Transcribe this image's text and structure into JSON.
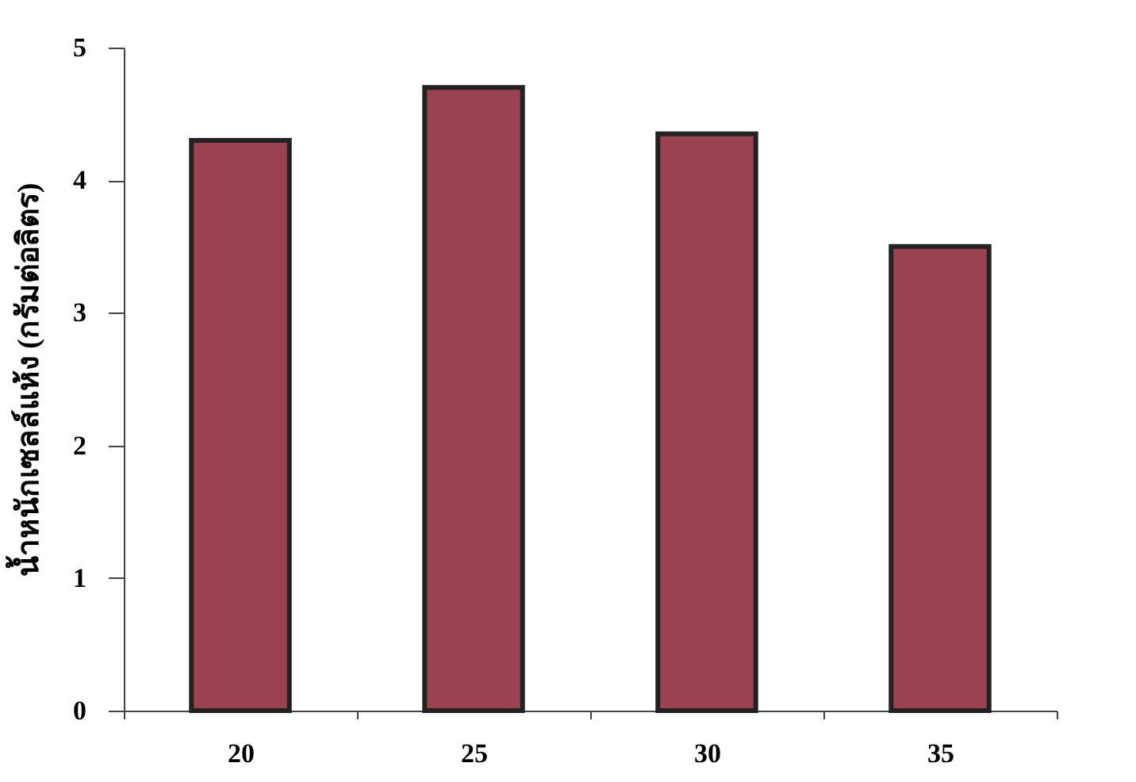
{
  "chart_data": {
    "type": "bar",
    "ylabel": "น้ำหนักเซลล์แห้ง (กรัมต่อลิตร)",
    "categories": [
      "20",
      "25",
      "30",
      "35"
    ],
    "values": [
      4.3,
      4.7,
      4.35,
      3.5
    ],
    "color": "#9a4252",
    "ylim": [
      0,
      5
    ],
    "yticks": [
      0,
      1,
      2,
      3,
      4,
      5
    ],
    "grid": false
  }
}
